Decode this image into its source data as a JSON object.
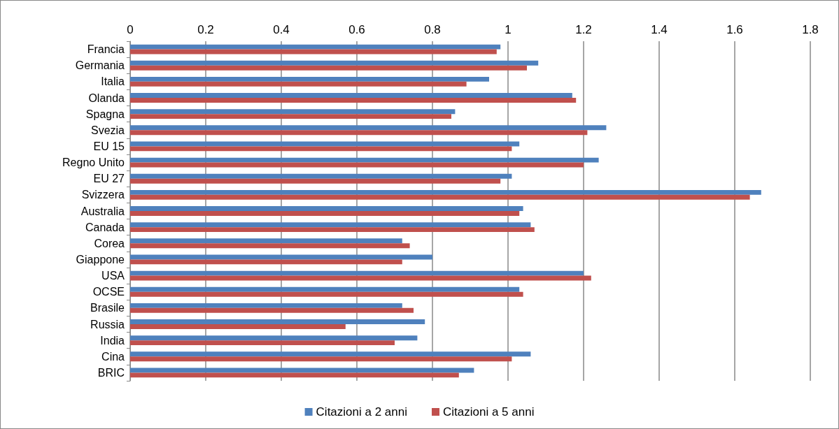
{
  "chart_data": {
    "type": "bar",
    "orientation": "horizontal",
    "categories": [
      "Francia",
      "Germania",
      "Italia",
      "Olanda",
      "Spagna",
      "Svezia",
      "EU 15",
      "Regno Unito",
      "EU 27",
      "Svizzera",
      "Australia",
      "Canada",
      "Corea",
      "Giappone",
      "USA",
      "OCSE",
      "Brasile",
      "Russia",
      "India",
      "Cina",
      "BRIC"
    ],
    "series": [
      {
        "name": "Citazioni a 2 anni",
        "color": "#4f81bd",
        "values": [
          0.98,
          1.08,
          0.95,
          1.17,
          0.86,
          1.26,
          1.03,
          1.24,
          1.01,
          1.67,
          1.04,
          1.06,
          0.72,
          0.8,
          1.2,
          1.03,
          0.72,
          0.78,
          0.76,
          1.06,
          0.91
        ]
      },
      {
        "name": "Citazioni a 5 anni",
        "color": "#c0504d",
        "values": [
          0.97,
          1.05,
          0.89,
          1.18,
          0.85,
          1.21,
          1.01,
          1.2,
          0.98,
          1.64,
          1.03,
          1.07,
          0.74,
          0.72,
          1.22,
          1.04,
          0.75,
          0.57,
          0.7,
          1.01,
          0.87
        ]
      }
    ],
    "xlim": [
      0,
      1.8
    ],
    "xticks": [
      0,
      0.2,
      0.4,
      0.6,
      0.8,
      1,
      1.2,
      1.4,
      1.6,
      1.8
    ],
    "grid": "x",
    "legend": "bottom"
  }
}
